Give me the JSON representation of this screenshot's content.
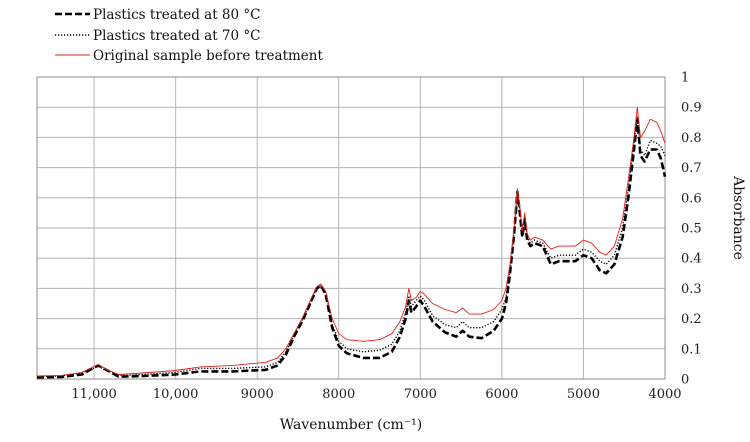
{
  "chart_data": {
    "type": "line",
    "title": "",
    "xlabel": "Wavenumber (cm⁻¹)",
    "ylabel": "Absorbance",
    "x_reversed": true,
    "xlim": [
      11700,
      4000
    ],
    "ylim": [
      0,
      1
    ],
    "x_ticks": [
      {
        "value": 11000,
        "label": "11,000"
      },
      {
        "value": 10000,
        "label": "10,000"
      },
      {
        "value": 9000,
        "label": "9000"
      },
      {
        "value": 8000,
        "label": "8000"
      },
      {
        "value": 7000,
        "label": "7000"
      },
      {
        "value": 6000,
        "label": "6000"
      },
      {
        "value": 5000,
        "label": "5000"
      },
      {
        "value": 4000,
        "label": "4000"
      }
    ],
    "y_ticks": [
      "0",
      "0.1",
      "0.2",
      "0.3",
      "0.4",
      "0.5",
      "0.6",
      "0.7",
      "0.8",
      "0.9",
      "1"
    ],
    "y_axis_side": "right",
    "grid": true,
    "legend_position": "top-left",
    "series": [
      {
        "name": "Plastics treated at 80 °C",
        "color": "#000000",
        "style": "dashed",
        "points": [
          [
            11700,
            0.005
          ],
          [
            11400,
            0.007
          ],
          [
            11150,
            0.015
          ],
          [
            11050,
            0.03
          ],
          [
            10950,
            0.045
          ],
          [
            10850,
            0.03
          ],
          [
            10700,
            0.008
          ],
          [
            10400,
            0.01
          ],
          [
            10000,
            0.015
          ],
          [
            9700,
            0.025
          ],
          [
            9300,
            0.025
          ],
          [
            8900,
            0.03
          ],
          [
            8750,
            0.045
          ],
          [
            8650,
            0.08
          ],
          [
            8550,
            0.14
          ],
          [
            8450,
            0.19
          ],
          [
            8350,
            0.25
          ],
          [
            8270,
            0.3
          ],
          [
            8220,
            0.31
          ],
          [
            8160,
            0.28
          ],
          [
            8080,
            0.17
          ],
          [
            8000,
            0.11
          ],
          [
            7900,
            0.085
          ],
          [
            7700,
            0.07
          ],
          [
            7500,
            0.07
          ],
          [
            7350,
            0.09
          ],
          [
            7250,
            0.14
          ],
          [
            7180,
            0.2
          ],
          [
            7140,
            0.26
          ],
          [
            7110,
            0.22
          ],
          [
            7050,
            0.24
          ],
          [
            7000,
            0.26
          ],
          [
            6950,
            0.24
          ],
          [
            6850,
            0.19
          ],
          [
            6700,
            0.155
          ],
          [
            6560,
            0.14
          ],
          [
            6480,
            0.16
          ],
          [
            6400,
            0.14
          ],
          [
            6250,
            0.135
          ],
          [
            6100,
            0.16
          ],
          [
            6000,
            0.2
          ],
          [
            5950,
            0.25
          ],
          [
            5900,
            0.35
          ],
          [
            5850,
            0.48
          ],
          [
            5810,
            0.62
          ],
          [
            5780,
            0.55
          ],
          [
            5750,
            0.47
          ],
          [
            5720,
            0.53
          ],
          [
            5690,
            0.46
          ],
          [
            5650,
            0.44
          ],
          [
            5600,
            0.45
          ],
          [
            5500,
            0.44
          ],
          [
            5400,
            0.38
          ],
          [
            5300,
            0.39
          ],
          [
            5100,
            0.39
          ],
          [
            5000,
            0.41
          ],
          [
            4900,
            0.4
          ],
          [
            4800,
            0.36
          ],
          [
            4720,
            0.35
          ],
          [
            4620,
            0.38
          ],
          [
            4520,
            0.47
          ],
          [
            4450,
            0.6
          ],
          [
            4380,
            0.76
          ],
          [
            4340,
            0.86
          ],
          [
            4300,
            0.74
          ],
          [
            4250,
            0.72
          ],
          [
            4180,
            0.76
          ],
          [
            4100,
            0.76
          ],
          [
            4050,
            0.73
          ],
          [
            4000,
            0.67
          ]
        ]
      },
      {
        "name": "Plastics treated at 70 °C",
        "color": "#000000",
        "style": "dotted",
        "points": [
          [
            11700,
            0.008
          ],
          [
            11400,
            0.01
          ],
          [
            11150,
            0.02
          ],
          [
            11050,
            0.03
          ],
          [
            10950,
            0.042
          ],
          [
            10850,
            0.03
          ],
          [
            10700,
            0.012
          ],
          [
            10400,
            0.015
          ],
          [
            10000,
            0.022
          ],
          [
            9700,
            0.035
          ],
          [
            9300,
            0.035
          ],
          [
            8900,
            0.04
          ],
          [
            8750,
            0.055
          ],
          [
            8650,
            0.09
          ],
          [
            8550,
            0.145
          ],
          [
            8450,
            0.195
          ],
          [
            8350,
            0.25
          ],
          [
            8270,
            0.3
          ],
          [
            8220,
            0.31
          ],
          [
            8160,
            0.285
          ],
          [
            8080,
            0.18
          ],
          [
            8000,
            0.125
          ],
          [
            7900,
            0.1
          ],
          [
            7700,
            0.09
          ],
          [
            7500,
            0.095
          ],
          [
            7350,
            0.115
          ],
          [
            7250,
            0.16
          ],
          [
            7180,
            0.22
          ],
          [
            7140,
            0.275
          ],
          [
            7110,
            0.24
          ],
          [
            7050,
            0.26
          ],
          [
            7000,
            0.275
          ],
          [
            6950,
            0.26
          ],
          [
            6850,
            0.21
          ],
          [
            6700,
            0.18
          ],
          [
            6560,
            0.17
          ],
          [
            6480,
            0.19
          ],
          [
            6400,
            0.17
          ],
          [
            6250,
            0.17
          ],
          [
            6100,
            0.19
          ],
          [
            6000,
            0.23
          ],
          [
            5950,
            0.27
          ],
          [
            5900,
            0.36
          ],
          [
            5850,
            0.49
          ],
          [
            5810,
            0.62
          ],
          [
            5780,
            0.56
          ],
          [
            5750,
            0.48
          ],
          [
            5720,
            0.54
          ],
          [
            5690,
            0.47
          ],
          [
            5650,
            0.45
          ],
          [
            5600,
            0.46
          ],
          [
            5500,
            0.45
          ],
          [
            5400,
            0.4
          ],
          [
            5300,
            0.41
          ],
          [
            5100,
            0.41
          ],
          [
            5000,
            0.43
          ],
          [
            4900,
            0.42
          ],
          [
            4800,
            0.39
          ],
          [
            4720,
            0.38
          ],
          [
            4620,
            0.41
          ],
          [
            4520,
            0.5
          ],
          [
            4450,
            0.63
          ],
          [
            4380,
            0.78
          ],
          [
            4340,
            0.87
          ],
          [
            4300,
            0.76
          ],
          [
            4250,
            0.74
          ],
          [
            4180,
            0.79
          ],
          [
            4100,
            0.78
          ],
          [
            4050,
            0.77
          ],
          [
            4000,
            0.74
          ]
        ]
      },
      {
        "name": "Original sample before treatment",
        "color": "#e0201b",
        "style": "solid",
        "points": [
          [
            11700,
            0.01
          ],
          [
            11400,
            0.012
          ],
          [
            11150,
            0.022
          ],
          [
            11050,
            0.035
          ],
          [
            10950,
            0.048
          ],
          [
            10850,
            0.032
          ],
          [
            10700,
            0.015
          ],
          [
            10400,
            0.02
          ],
          [
            10000,
            0.028
          ],
          [
            9700,
            0.04
          ],
          [
            9300,
            0.045
          ],
          [
            8900,
            0.055
          ],
          [
            8750,
            0.07
          ],
          [
            8650,
            0.1
          ],
          [
            8550,
            0.15
          ],
          [
            8450,
            0.2
          ],
          [
            8350,
            0.26
          ],
          [
            8270,
            0.305
          ],
          [
            8220,
            0.315
          ],
          [
            8160,
            0.29
          ],
          [
            8080,
            0.2
          ],
          [
            8000,
            0.15
          ],
          [
            7900,
            0.13
          ],
          [
            7700,
            0.125
          ],
          [
            7500,
            0.13
          ],
          [
            7350,
            0.15
          ],
          [
            7250,
            0.19
          ],
          [
            7180,
            0.24
          ],
          [
            7140,
            0.3
          ],
          [
            7110,
            0.26
          ],
          [
            7050,
            0.27
          ],
          [
            7000,
            0.29
          ],
          [
            6950,
            0.28
          ],
          [
            6850,
            0.25
          ],
          [
            6700,
            0.23
          ],
          [
            6560,
            0.22
          ],
          [
            6480,
            0.235
          ],
          [
            6400,
            0.215
          ],
          [
            6250,
            0.215
          ],
          [
            6100,
            0.23
          ],
          [
            6000,
            0.26
          ],
          [
            5950,
            0.3
          ],
          [
            5900,
            0.38
          ],
          [
            5850,
            0.5
          ],
          [
            5810,
            0.63
          ],
          [
            5780,
            0.57
          ],
          [
            5750,
            0.49
          ],
          [
            5720,
            0.55
          ],
          [
            5690,
            0.48
          ],
          [
            5650,
            0.46
          ],
          [
            5600,
            0.47
          ],
          [
            5500,
            0.46
          ],
          [
            5400,
            0.43
          ],
          [
            5300,
            0.44
          ],
          [
            5100,
            0.44
          ],
          [
            5000,
            0.46
          ],
          [
            4900,
            0.45
          ],
          [
            4800,
            0.42
          ],
          [
            4720,
            0.41
          ],
          [
            4620,
            0.44
          ],
          [
            4520,
            0.53
          ],
          [
            4450,
            0.66
          ],
          [
            4380,
            0.8
          ],
          [
            4340,
            0.9
          ],
          [
            4300,
            0.8
          ],
          [
            4250,
            0.82
          ],
          [
            4180,
            0.86
          ],
          [
            4100,
            0.85
          ],
          [
            4050,
            0.82
          ],
          [
            4000,
            0.78
          ]
        ]
      }
    ]
  }
}
